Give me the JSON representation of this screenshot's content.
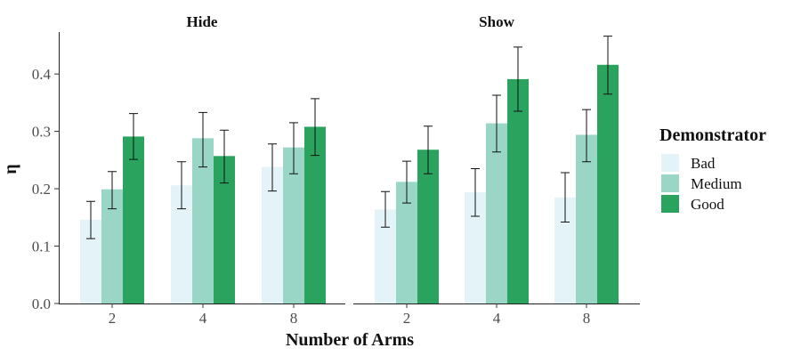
{
  "chart_data": {
    "type": "bar",
    "ylabel": "η",
    "xlabel": "Number of Arms",
    "ylim": [
      0,
      0.47
    ],
    "y_ticks": [
      "0.0",
      "0.1",
      "0.2",
      "0.3",
      "0.4"
    ],
    "y_tick_values": [
      0,
      0.1,
      0.2,
      0.3,
      0.4
    ],
    "categories": [
      "2",
      "4",
      "8"
    ],
    "grid": false,
    "legend": {
      "title": "Demonstrator",
      "placement": "right",
      "entries": [
        {
          "name": "Bad",
          "color": "#e3f3f8"
        },
        {
          "name": "Medium",
          "color": "#99d6c6"
        },
        {
          "name": "Good",
          "color": "#2aa35f"
        }
      ]
    },
    "facets": [
      {
        "title": "Hide",
        "series": [
          {
            "name": "Bad",
            "values": [
              0.146,
              0.206,
              0.238
            ],
            "err_low": [
              0.113,
              0.165,
              0.196
            ],
            "err_high": [
              0.178,
              0.247,
              0.278
            ]
          },
          {
            "name": "Medium",
            "values": [
              0.199,
              0.288,
              0.272
            ],
            "err_low": [
              0.165,
              0.238,
              0.226
            ],
            "err_high": [
              0.23,
              0.333,
              0.315
            ]
          },
          {
            "name": "Good",
            "values": [
              0.291,
              0.257,
              0.308
            ],
            "err_low": [
              0.251,
              0.21,
              0.258
            ],
            "err_high": [
              0.331,
              0.302,
              0.357
            ]
          }
        ]
      },
      {
        "title": "Show",
        "series": [
          {
            "name": "Bad",
            "values": [
              0.164,
              0.194,
              0.185
            ],
            "err_low": [
              0.133,
              0.152,
              0.142
            ],
            "err_high": [
              0.195,
              0.235,
              0.228
            ]
          },
          {
            "name": "Medium",
            "values": [
              0.212,
              0.314,
              0.294
            ],
            "err_low": [
              0.175,
              0.264,
              0.247
            ],
            "err_high": [
              0.248,
              0.363,
              0.338
            ]
          },
          {
            "name": "Good",
            "values": [
              0.268,
              0.391,
              0.416
            ],
            "err_low": [
              0.226,
              0.335,
              0.365
            ],
            "err_high": [
              0.309,
              0.447,
              0.466
            ]
          }
        ]
      }
    ]
  }
}
